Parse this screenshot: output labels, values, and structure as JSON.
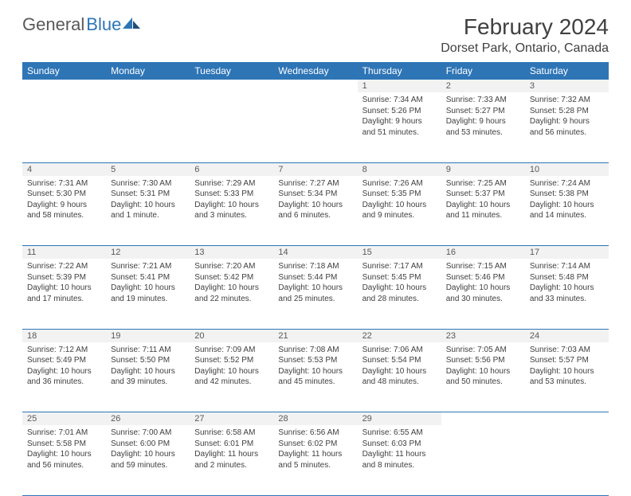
{
  "logo": {
    "text1": "General",
    "text2": "Blue"
  },
  "title": "February 2024",
  "location": "Dorset Park, Ontario, Canada",
  "colors": {
    "header_bg": "#2e75b6",
    "header_text": "#ffffff",
    "daynum_bg": "#f2f2f2",
    "text": "#404040",
    "border": "#2e75b6"
  },
  "dayHeaders": [
    "Sunday",
    "Monday",
    "Tuesday",
    "Wednesday",
    "Thursday",
    "Friday",
    "Saturday"
  ],
  "weeks": [
    [
      null,
      null,
      null,
      null,
      {
        "num": "1",
        "sunrise": "7:34 AM",
        "sunset": "5:26 PM",
        "daylight": "9 hours and 51 minutes."
      },
      {
        "num": "2",
        "sunrise": "7:33 AM",
        "sunset": "5:27 PM",
        "daylight": "9 hours and 53 minutes."
      },
      {
        "num": "3",
        "sunrise": "7:32 AM",
        "sunset": "5:28 PM",
        "daylight": "9 hours and 56 minutes."
      }
    ],
    [
      {
        "num": "4",
        "sunrise": "7:31 AM",
        "sunset": "5:30 PM",
        "daylight": "9 hours and 58 minutes."
      },
      {
        "num": "5",
        "sunrise": "7:30 AM",
        "sunset": "5:31 PM",
        "daylight": "10 hours and 1 minute."
      },
      {
        "num": "6",
        "sunrise": "7:29 AM",
        "sunset": "5:33 PM",
        "daylight": "10 hours and 3 minutes."
      },
      {
        "num": "7",
        "sunrise": "7:27 AM",
        "sunset": "5:34 PM",
        "daylight": "10 hours and 6 minutes."
      },
      {
        "num": "8",
        "sunrise": "7:26 AM",
        "sunset": "5:35 PM",
        "daylight": "10 hours and 9 minutes."
      },
      {
        "num": "9",
        "sunrise": "7:25 AM",
        "sunset": "5:37 PM",
        "daylight": "10 hours and 11 minutes."
      },
      {
        "num": "10",
        "sunrise": "7:24 AM",
        "sunset": "5:38 PM",
        "daylight": "10 hours and 14 minutes."
      }
    ],
    [
      {
        "num": "11",
        "sunrise": "7:22 AM",
        "sunset": "5:39 PM",
        "daylight": "10 hours and 17 minutes."
      },
      {
        "num": "12",
        "sunrise": "7:21 AM",
        "sunset": "5:41 PM",
        "daylight": "10 hours and 19 minutes."
      },
      {
        "num": "13",
        "sunrise": "7:20 AM",
        "sunset": "5:42 PM",
        "daylight": "10 hours and 22 minutes."
      },
      {
        "num": "14",
        "sunrise": "7:18 AM",
        "sunset": "5:44 PM",
        "daylight": "10 hours and 25 minutes."
      },
      {
        "num": "15",
        "sunrise": "7:17 AM",
        "sunset": "5:45 PM",
        "daylight": "10 hours and 28 minutes."
      },
      {
        "num": "16",
        "sunrise": "7:15 AM",
        "sunset": "5:46 PM",
        "daylight": "10 hours and 30 minutes."
      },
      {
        "num": "17",
        "sunrise": "7:14 AM",
        "sunset": "5:48 PM",
        "daylight": "10 hours and 33 minutes."
      }
    ],
    [
      {
        "num": "18",
        "sunrise": "7:12 AM",
        "sunset": "5:49 PM",
        "daylight": "10 hours and 36 minutes."
      },
      {
        "num": "19",
        "sunrise": "7:11 AM",
        "sunset": "5:50 PM",
        "daylight": "10 hours and 39 minutes."
      },
      {
        "num": "20",
        "sunrise": "7:09 AM",
        "sunset": "5:52 PM",
        "daylight": "10 hours and 42 minutes."
      },
      {
        "num": "21",
        "sunrise": "7:08 AM",
        "sunset": "5:53 PM",
        "daylight": "10 hours and 45 minutes."
      },
      {
        "num": "22",
        "sunrise": "7:06 AM",
        "sunset": "5:54 PM",
        "daylight": "10 hours and 48 minutes."
      },
      {
        "num": "23",
        "sunrise": "7:05 AM",
        "sunset": "5:56 PM",
        "daylight": "10 hours and 50 minutes."
      },
      {
        "num": "24",
        "sunrise": "7:03 AM",
        "sunset": "5:57 PM",
        "daylight": "10 hours and 53 minutes."
      }
    ],
    [
      {
        "num": "25",
        "sunrise": "7:01 AM",
        "sunset": "5:58 PM",
        "daylight": "10 hours and 56 minutes."
      },
      {
        "num": "26",
        "sunrise": "7:00 AM",
        "sunset": "6:00 PM",
        "daylight": "10 hours and 59 minutes."
      },
      {
        "num": "27",
        "sunrise": "6:58 AM",
        "sunset": "6:01 PM",
        "daylight": "11 hours and 2 minutes."
      },
      {
        "num": "28",
        "sunrise": "6:56 AM",
        "sunset": "6:02 PM",
        "daylight": "11 hours and 5 minutes."
      },
      {
        "num": "29",
        "sunrise": "6:55 AM",
        "sunset": "6:03 PM",
        "daylight": "11 hours and 8 minutes."
      },
      null,
      null
    ]
  ],
  "labels": {
    "sunrise": "Sunrise:",
    "sunset": "Sunset:",
    "daylight": "Daylight:"
  }
}
